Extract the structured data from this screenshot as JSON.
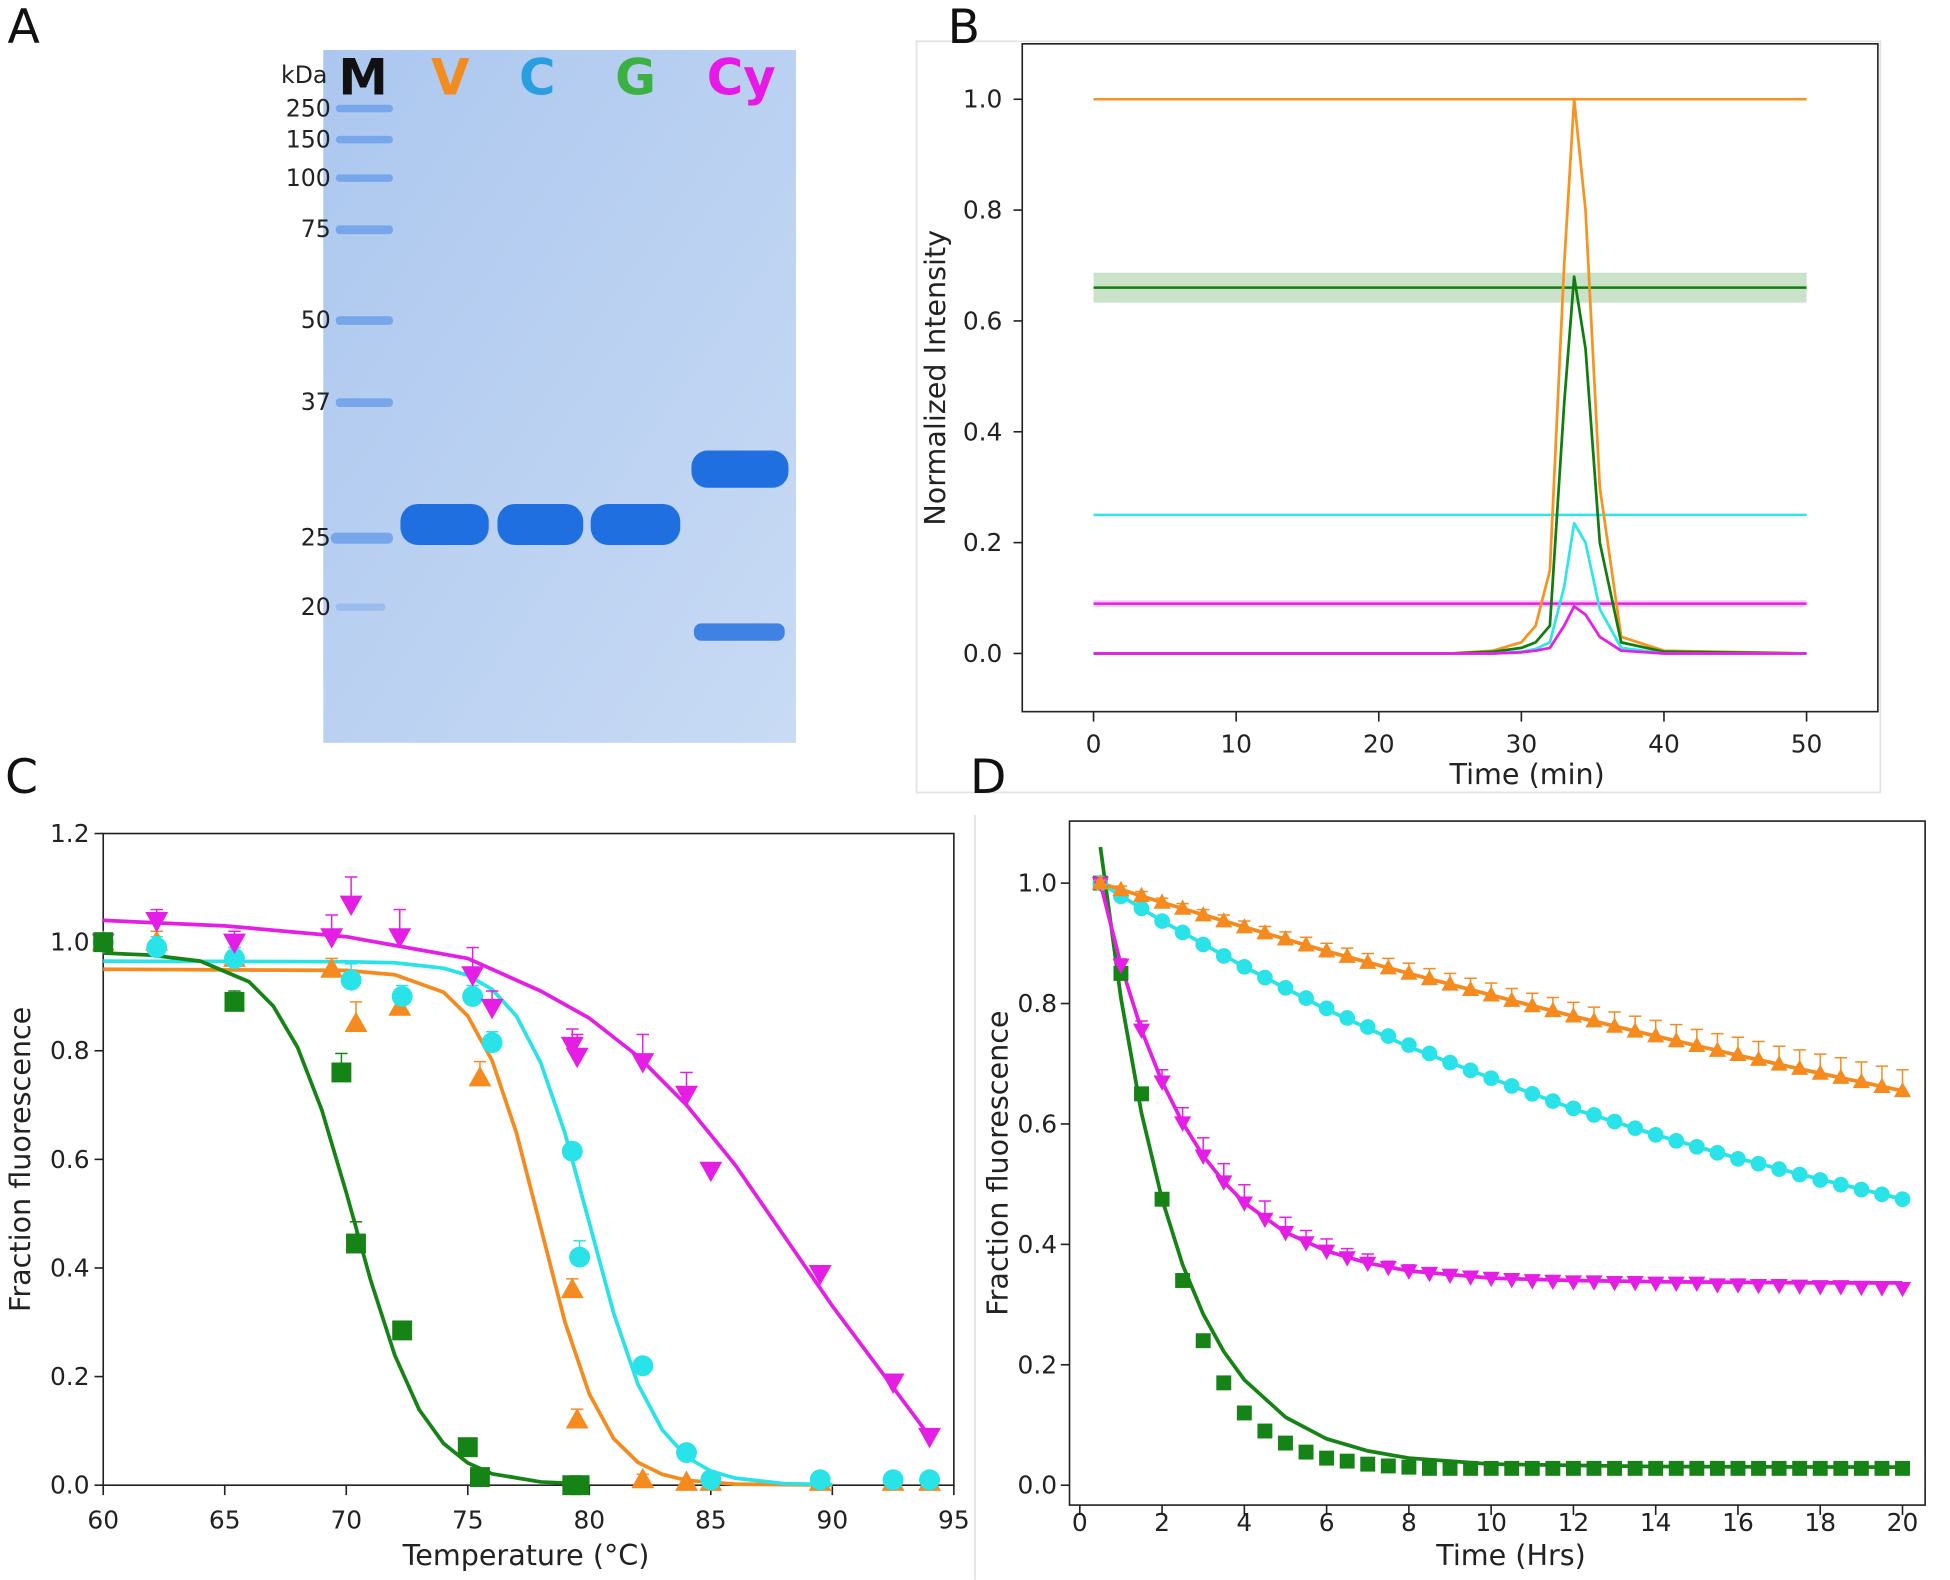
{
  "panels": [
    "A",
    "B",
    "C",
    "D"
  ],
  "gel": {
    "unit": "kDa",
    "lanes": [
      {
        "label": "M",
        "color": "#111111"
      },
      {
        "label": "V",
        "color": "#f28c1f"
      },
      {
        "label": "C",
        "color": "#2a9fe0"
      },
      {
        "label": "G",
        "color": "#3cb043"
      },
      {
        "label": "Cy",
        "color": "#e619e6"
      }
    ],
    "markers": [
      "250",
      "150",
      "100",
      "75",
      "50",
      "37",
      "25",
      "20"
    ]
  },
  "chart_data": [
    {
      "type": "line",
      "xlabel": "Time (min)",
      "ylabel": "Normalized Intensity",
      "xlim": [
        -5,
        55
      ],
      "ylim": [
        -0.105,
        1.1
      ],
      "xticks": [
        0,
        10,
        20,
        30,
        40,
        50
      ],
      "yticks": [
        {
          "value": 0,
          "label": "0.0"
        },
        {
          "value": 0.2,
          "label": "0.2"
        },
        {
          "value": 0.4,
          "label": "0.4"
        },
        {
          "value": 0.6,
          "label": "0.6"
        },
        {
          "value": 0.8,
          "label": "0.8"
        },
        {
          "value": 1.0,
          "label": "1.0"
        }
      ],
      "x": [
        0,
        25,
        28,
        30,
        31,
        32,
        33,
        33.7,
        34.5,
        35.5,
        37,
        40,
        50
      ],
      "series": [
        {
          "color": "#f7931e",
          "values": [
            0,
            0,
            0.005,
            0.02,
            0.05,
            0.15,
            0.7,
            1.0,
            0.8,
            0.3,
            0.03,
            0.005,
            0
          ]
        },
        {
          "color": "#0f7d0f",
          "values": [
            0,
            0,
            0.003,
            0.01,
            0.02,
            0.05,
            0.45,
            0.68,
            0.55,
            0.2,
            0.02,
            0.003,
            0
          ]
        },
        {
          "color": "#2de6e6",
          "values": [
            0,
            0,
            0,
            0.003,
            0.008,
            0.02,
            0.12,
            0.235,
            0.2,
            0.08,
            0.01,
            0,
            0
          ]
        },
        {
          "color": "#e61ee6",
          "values": [
            0,
            0,
            0,
            0.002,
            0.005,
            0.01,
            0.05,
            0.085,
            0.07,
            0.03,
            0.005,
            0,
            0
          ]
        }
      ],
      "reference_xrange": [
        0,
        50
      ],
      "reference_lines": [
        {
          "color": "#f7931e",
          "value": 1.0
        },
        {
          "color": "#0f7d0f",
          "value": 0.66,
          "band": 0.027
        },
        {
          "color": "#2de6e6",
          "value": 0.25
        },
        {
          "color": "#e61ee6",
          "value": 0.09,
          "band": 0.006
        }
      ]
    },
    {
      "type": "scatter",
      "xlabel": "Temperature (°C)",
      "ylabel": "Fraction fluorescence",
      "xlim": [
        60,
        95
      ],
      "ylim": [
        0,
        1.2
      ],
      "xticks": [
        60,
        65,
        70,
        75,
        80,
        85,
        90,
        95
      ],
      "yticks": [
        {
          "value": 0,
          "label": "0.0"
        },
        {
          "value": 0.2,
          "label": "0.2"
        },
        {
          "value": 0.4,
          "label": "0.4"
        },
        {
          "value": 0.6,
          "label": "0.6"
        },
        {
          "value": 0.8,
          "label": "0.8"
        },
        {
          "value": 1.0,
          "label": "1.0"
        },
        {
          "value": 1.2,
          "label": "1.2"
        }
      ],
      "series": [
        {
          "color": "#f58b1f",
          "marker": "triangle-up",
          "x": [
            60,
            62.2,
            65.4,
            69.4,
            70.4,
            72.2,
            75.5,
            79.3,
            79.5,
            82.2,
            84,
            85,
            89.5,
            92.5,
            94
          ],
          "values": [
            1.0,
            1.0,
            0.97,
            0.95,
            0.85,
            0.88,
            0.75,
            0.36,
            0.12,
            0.01,
            0.005,
            0.005,
            0.005,
            0.005,
            0.005
          ],
          "errors": [
            0.01,
            0.02,
            0.02,
            0.02,
            0.04,
            0.02,
            0.03,
            0.02,
            0.02,
            0.01,
            0.005,
            0.005,
            0.005,
            0.005,
            0.005
          ],
          "fit_x": [
            60,
            70,
            72,
            74,
            75,
            76,
            77,
            78,
            79,
            80,
            81,
            82,
            83,
            84,
            86,
            90
          ],
          "fit_values": [
            0.95,
            0.948,
            0.94,
            0.908,
            0.864,
            0.782,
            0.649,
            0.475,
            0.3,
            0.168,
            0.086,
            0.042,
            0.02,
            0.009,
            0.002,
            0
          ]
        },
        {
          "color": "#29e3e8",
          "marker": "circle",
          "x": [
            60,
            62.2,
            65.4,
            70.2,
            72.3,
            75.2,
            76,
            79.3,
            79.6,
            82.2,
            84,
            85,
            89.5,
            92.5,
            94
          ],
          "values": [
            1.0,
            0.99,
            0.97,
            0.93,
            0.9,
            0.9,
            0.815,
            0.615,
            0.42,
            0.22,
            0.06,
            0.01,
            0.01,
            0.01,
            0.01
          ],
          "errors": [
            0.01,
            0.02,
            0.02,
            0.03,
            0.02,
            0.02,
            0.02,
            0.01,
            0.03,
            0.01,
            0.01,
            0.005,
            0.005,
            0.005,
            0.005
          ],
          "fit_x": [
            60,
            70,
            72,
            74,
            75,
            76,
            77,
            78,
            79,
            80,
            81,
            82,
            83,
            84,
            85,
            86,
            88,
            90
          ],
          "fit_values": [
            0.965,
            0.964,
            0.962,
            0.952,
            0.939,
            0.913,
            0.864,
            0.778,
            0.648,
            0.483,
            0.317,
            0.186,
            0.102,
            0.052,
            0.026,
            0.013,
            0.003,
            0.001
          ]
        },
        {
          "color": "#e51ee5",
          "marker": "triangle-down",
          "x": [
            60,
            62.2,
            65.4,
            69.4,
            70.2,
            72.2,
            75.2,
            76,
            79.3,
            79.5,
            82.2,
            84,
            85,
            89.5,
            92.5,
            94
          ],
          "values": [
            1.0,
            1.04,
            1.0,
            1.01,
            1.07,
            1.01,
            0.94,
            0.88,
            0.81,
            0.79,
            0.78,
            0.72,
            0.58,
            0.39,
            0.19,
            0.09
          ],
          "errors": [
            0.01,
            0.02,
            0.02,
            0.04,
            0.05,
            0.05,
            0.05,
            0.03,
            0.03,
            0.04,
            0.05,
            0.04,
            0.01,
            0.01,
            0.01,
            0.01
          ],
          "fit_x": [
            60,
            65,
            70,
            75,
            78,
            80,
            82,
            84,
            86,
            88,
            90,
            92,
            94
          ],
          "fit_values": [
            1.04,
            1.03,
            1.01,
            0.97,
            0.91,
            0.86,
            0.79,
            0.7,
            0.59,
            0.46,
            0.33,
            0.21,
            0.09
          ]
        },
        {
          "color": "#168316",
          "marker": "square",
          "x": [
            60,
            65.4,
            69.8,
            70.4,
            72.3,
            75,
            75.5,
            79.3,
            79.6
          ],
          "values": [
            1.0,
            0.89,
            0.76,
            0.445,
            0.285,
            0.07,
            0.015,
            0.0,
            0.0
          ],
          "errors": [
            0.01,
            0.02,
            0.035,
            0.04,
            0.01,
            0.01,
            0.01,
            0.005,
            0.005
          ],
          "fit_x": [
            60,
            62,
            64,
            66,
            67,
            68,
            69,
            70,
            71,
            72,
            73,
            74,
            75,
            76,
            78,
            80
          ],
          "fit_values": [
            0.98,
            0.976,
            0.965,
            0.927,
            0.882,
            0.806,
            0.69,
            0.539,
            0.378,
            0.239,
            0.139,
            0.077,
            0.041,
            0.021,
            0.006,
            0.002
          ]
        }
      ]
    },
    {
      "type": "scatter",
      "xlabel": "Time (Hrs)",
      "ylabel": "Fraction fluorescence",
      "xlim": [
        -0.25,
        20.55
      ],
      "ylim": [
        -0.033,
        1.103
      ],
      "xticks": [
        0,
        2,
        4,
        6,
        8,
        10,
        12,
        14,
        16,
        18,
        20
      ],
      "yticks": [
        {
          "value": 0,
          "label": "0.0"
        },
        {
          "value": 0.2,
          "label": "0.2"
        },
        {
          "value": 0.4,
          "label": "0.4"
        },
        {
          "value": 0.6,
          "label": "0.6"
        },
        {
          "value": 0.8,
          "label": "0.8"
        },
        {
          "value": 1.0,
          "label": "1.0"
        }
      ],
      "x": [
        0.5,
        1,
        1.5,
        2,
        2.5,
        3,
        3.5,
        4,
        4.5,
        5,
        5.5,
        6,
        6.5,
        7,
        7.5,
        8,
        8.5,
        9,
        9.5,
        10,
        10.5,
        11,
        11.5,
        12,
        12.5,
        13,
        13.5,
        14,
        14.5,
        15,
        15.5,
        16,
        16.5,
        17,
        17.5,
        18,
        18.5,
        19,
        19.5,
        20
      ],
      "series": [
        {
          "color": "#168316",
          "marker": "square",
          "values": [
            1.0,
            0.85,
            0.65,
            0.475,
            0.34,
            0.24,
            0.17,
            0.12,
            0.09,
            0.07,
            0.055,
            0.045,
            0.04,
            0.035,
            0.032,
            0.03,
            0.028,
            0.028,
            0.028,
            0.028,
            0.028,
            0.028,
            0.028,
            0.028,
            0.028,
            0.028,
            0.028,
            0.028,
            0.028,
            0.028,
            0.028,
            0.028,
            0.028,
            0.028,
            0.028,
            0.028,
            0.028,
            0.028,
            0.028,
            0.028
          ],
          "fit_x": [
            0.5,
            1,
            1.5,
            2,
            2.5,
            3,
            3.5,
            4,
            5,
            6,
            7,
            8,
            10,
            14,
            20
          ],
          "fit_values": [
            1.06,
            0.809,
            0.618,
            0.475,
            0.366,
            0.284,
            0.222,
            0.175,
            0.113,
            0.077,
            0.057,
            0.045,
            0.035,
            0.031,
            0.03
          ]
        },
        {
          "color": "#29e3e8",
          "marker": "circle",
          "values": [
            1.0,
            0.978,
            0.958,
            0.937,
            0.918,
            0.898,
            0.879,
            0.861,
            0.843,
            0.826,
            0.809,
            0.792,
            0.776,
            0.761,
            0.746,
            0.731,
            0.717,
            0.702,
            0.689,
            0.676,
            0.663,
            0.65,
            0.638,
            0.626,
            0.615,
            0.604,
            0.593,
            0.582,
            0.572,
            0.562,
            0.552,
            0.542,
            0.534,
            0.525,
            0.516,
            0.507,
            0.499,
            0.491,
            0.483,
            0.475
          ],
          "fit_x": [
            0.5,
            2,
            4,
            6,
            8,
            10,
            12,
            14,
            16,
            18,
            20
          ],
          "fit_values": [
            1.0,
            0.937,
            0.861,
            0.79,
            0.728,
            0.676,
            0.625,
            0.582,
            0.543,
            0.508,
            0.475
          ]
        },
        {
          "color": "#e51ee5",
          "marker": "triangle-down",
          "values": [
            1.0,
            0.864,
            0.756,
            0.67,
            0.602,
            0.547,
            0.504,
            0.469,
            0.442,
            0.42,
            0.403,
            0.389,
            0.378,
            0.369,
            0.362,
            0.356,
            0.352,
            0.349,
            0.346,
            0.344,
            0.342,
            0.34,
            0.339,
            0.338,
            0.338,
            0.337,
            0.337,
            0.336,
            0.336,
            0.336,
            0.333,
            0.333,
            0.332,
            0.332,
            0.331,
            0.33,
            0.33,
            0.329,
            0.328,
            0.327
          ],
          "errors": [
            0,
            0.01,
            0.015,
            0.02,
            0.025,
            0.03,
            0.03,
            0.03,
            0.03,
            0.025,
            0.02,
            0.02,
            0.015,
            0.015,
            0.01,
            0.01,
            0.008,
            0.008,
            0.008,
            0.008,
            0.008,
            0.008,
            0.008,
            0.008,
            0.008,
            0.008,
            0.008,
            0.008,
            0.008,
            0.008,
            0.008,
            0.008,
            0.008,
            0.008,
            0.008,
            0.008,
            0.008,
            0.008,
            0.008,
            0.008
          ],
          "fit_x": [
            0.5,
            1,
            1.5,
            2,
            2.5,
            3,
            3.5,
            4,
            5,
            6,
            7,
            8,
            10,
            12,
            14,
            16,
            18,
            20
          ],
          "fit_values": [
            1.0,
            0.864,
            0.756,
            0.67,
            0.602,
            0.547,
            0.504,
            0.469,
            0.42,
            0.389,
            0.369,
            0.356,
            0.344,
            0.34,
            0.338,
            0.337,
            0.336,
            0.336
          ]
        },
        {
          "color": "#f58b1f",
          "marker": "triangle-up",
          "values": [
            1.0,
            0.989,
            0.979,
            0.968,
            0.958,
            0.947,
            0.937,
            0.927,
            0.917,
            0.907,
            0.897,
            0.887,
            0.878,
            0.868,
            0.859,
            0.85,
            0.841,
            0.832,
            0.823,
            0.814,
            0.805,
            0.796,
            0.788,
            0.779,
            0.771,
            0.762,
            0.754,
            0.746,
            0.738,
            0.73,
            0.722,
            0.715,
            0.707,
            0.699,
            0.692,
            0.684,
            0.677,
            0.67,
            0.662,
            0.655
          ],
          "errors": [
            0.005,
            0.006,
            0.007,
            0.007,
            0.008,
            0.009,
            0.01,
            0.01,
            0.011,
            0.012,
            0.013,
            0.013,
            0.014,
            0.015,
            0.016,
            0.017,
            0.017,
            0.018,
            0.019,
            0.02,
            0.02,
            0.021,
            0.022,
            0.023,
            0.023,
            0.024,
            0.025,
            0.026,
            0.027,
            0.027,
            0.028,
            0.029,
            0.03,
            0.03,
            0.031,
            0.032,
            0.033,
            0.033,
            0.034,
            0.035
          ],
          "fit_x": [
            0.5,
            2,
            4,
            6,
            8,
            10,
            12,
            14,
            16,
            18,
            20
          ],
          "fit_values": [
            1.0,
            0.968,
            0.927,
            0.887,
            0.85,
            0.814,
            0.779,
            0.746,
            0.714,
            0.684,
            0.655
          ]
        }
      ]
    }
  ]
}
